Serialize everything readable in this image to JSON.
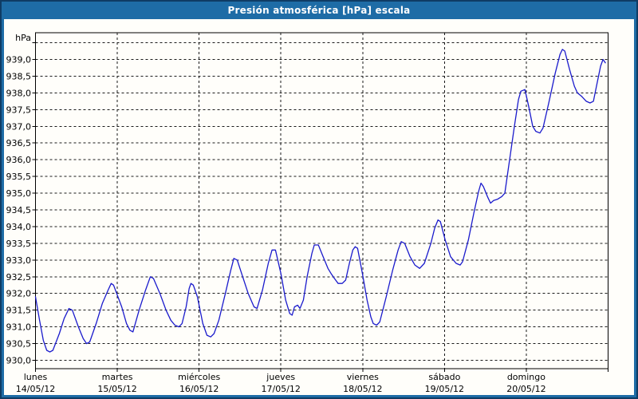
{
  "window": {
    "title": "Presión atmosférica [hPa] escala"
  },
  "colors": {
    "titlebar_background": "#1e6ca6",
    "frame_border": "#0f3c64",
    "title_text": "#ffffff",
    "chart_background": "#fffefa",
    "plot_border": "#000000",
    "gridline": "#1a1a1a",
    "axis_text": "#000000",
    "series_line": "#1a1acc"
  },
  "chart_data": {
    "type": "line",
    "title": "Presión atmosférica [hPa] escala",
    "grid": "dashed",
    "legend": "none",
    "y_axis": {
      "unit_label": "hPa",
      "min": 929.75,
      "max": 939.8,
      "gridline_values": [
        930.0,
        930.5,
        931.0,
        931.5,
        932.0,
        932.5,
        933.0,
        933.5,
        934.0,
        934.5,
        935.0,
        935.5,
        936.0,
        936.5,
        937.0,
        937.5,
        938.0,
        938.5,
        939.0,
        939.5
      ],
      "tick_labels": [
        "930,0",
        "930,5",
        "931,0",
        "931,5",
        "932,0",
        "932,5",
        "933,0",
        "933,5",
        "934,0",
        "934,5",
        "935,0",
        "935,5",
        "936,0",
        "936,5",
        "937,0",
        "937,5",
        "938,0",
        "938,5",
        "939,0"
      ]
    },
    "x_axis": {
      "total_hours": 168,
      "hours_per_day": 24,
      "days": [
        {
          "name": "lunes",
          "date": "14/05/12"
        },
        {
          "name": "martes",
          "date": "15/05/12"
        },
        {
          "name": "miércoles",
          "date": "16/05/12"
        },
        {
          "name": "jueves",
          "date": "17/05/12"
        },
        {
          "name": "viernes",
          "date": "18/05/12"
        },
        {
          "name": "sábado",
          "date": "19/05/12"
        },
        {
          "name": "domingo",
          "date": "20/05/12"
        }
      ]
    },
    "series": [
      {
        "name": "Presión atmosférica",
        "unit": "hPa",
        "points": [
          [
            0,
            931.9
          ],
          [
            1.2,
            931.2
          ],
          [
            2.3,
            930.6
          ],
          [
            3.3,
            930.3
          ],
          [
            4.2,
            930.25
          ],
          [
            5.1,
            930.3
          ],
          [
            7.0,
            930.8
          ],
          [
            8.4,
            931.25
          ],
          [
            9.8,
            931.55
          ],
          [
            10.8,
            931.5
          ],
          [
            12.6,
            931.0
          ],
          [
            14.0,
            930.65
          ],
          [
            15.0,
            930.5
          ],
          [
            15.9,
            930.55
          ],
          [
            17.8,
            931.1
          ],
          [
            19.6,
            931.7
          ],
          [
            21.3,
            932.1
          ],
          [
            22.2,
            932.3
          ],
          [
            22.9,
            932.25
          ],
          [
            25.3,
            931.6
          ],
          [
            26.7,
            931.1
          ],
          [
            27.7,
            930.9
          ],
          [
            28.6,
            930.85
          ],
          [
            30.4,
            931.5
          ],
          [
            32.3,
            932.1
          ],
          [
            33.7,
            932.5
          ],
          [
            34.6,
            932.45
          ],
          [
            36.5,
            932.0
          ],
          [
            38.3,
            931.5
          ],
          [
            39.7,
            931.2
          ],
          [
            40.9,
            931.05
          ],
          [
            42.1,
            931.0
          ],
          [
            43.0,
            931.1
          ],
          [
            44.2,
            931.6
          ],
          [
            45.1,
            932.15
          ],
          [
            45.6,
            932.3
          ],
          [
            46.3,
            932.25
          ],
          [
            47.5,
            931.9
          ],
          [
            49.1,
            931.1
          ],
          [
            50.3,
            930.75
          ],
          [
            51.4,
            930.7
          ],
          [
            52.4,
            930.8
          ],
          [
            53.8,
            931.2
          ],
          [
            55.7,
            932.0
          ],
          [
            57.3,
            932.7
          ],
          [
            58.2,
            933.05
          ],
          [
            59.2,
            933.0
          ],
          [
            60.8,
            932.5
          ],
          [
            62.4,
            932.0
          ],
          [
            64.1,
            931.6
          ],
          [
            65.0,
            931.55
          ],
          [
            66.6,
            932.1
          ],
          [
            68.3,
            932.9
          ],
          [
            69.4,
            933.3
          ],
          [
            70.4,
            933.3
          ],
          [
            72.0,
            932.6
          ],
          [
            73.4,
            931.8
          ],
          [
            74.6,
            931.4
          ],
          [
            75.3,
            931.35
          ],
          [
            76.0,
            931.6
          ],
          [
            76.9,
            931.65
          ],
          [
            77.6,
            931.55
          ],
          [
            78.6,
            931.8
          ],
          [
            79.7,
            932.5
          ],
          [
            81.1,
            933.2
          ],
          [
            81.8,
            933.45
          ],
          [
            83.0,
            933.45
          ],
          [
            84.4,
            933.1
          ],
          [
            85.8,
            932.75
          ],
          [
            86.7,
            932.6
          ],
          [
            87.7,
            932.45
          ],
          [
            88.8,
            932.3
          ],
          [
            90.0,
            932.3
          ],
          [
            91.0,
            932.4
          ],
          [
            92.1,
            932.9
          ],
          [
            93.1,
            933.3
          ],
          [
            93.8,
            933.4
          ],
          [
            94.5,
            933.35
          ],
          [
            95.9,
            932.6
          ],
          [
            97.3,
            931.8
          ],
          [
            98.4,
            931.3
          ],
          [
            99.1,
            931.1
          ],
          [
            100.1,
            931.05
          ],
          [
            101.0,
            931.15
          ],
          [
            102.9,
            931.9
          ],
          [
            104.8,
            932.7
          ],
          [
            106.4,
            933.3
          ],
          [
            107.3,
            933.55
          ],
          [
            108.3,
            933.5
          ],
          [
            109.9,
            933.1
          ],
          [
            111.3,
            932.85
          ],
          [
            112.7,
            932.75
          ],
          [
            114.1,
            932.9
          ],
          [
            116.0,
            933.5
          ],
          [
            117.1,
            933.95
          ],
          [
            118.1,
            934.2
          ],
          [
            118.8,
            934.15
          ],
          [
            120.2,
            933.6
          ],
          [
            121.8,
            933.1
          ],
          [
            123.4,
            932.9
          ],
          [
            124.6,
            932.85
          ],
          [
            125.3,
            932.95
          ],
          [
            127.0,
            933.6
          ],
          [
            128.6,
            934.4
          ],
          [
            130.0,
            935.05
          ],
          [
            130.7,
            935.3
          ],
          [
            131.4,
            935.2
          ],
          [
            132.6,
            934.9
          ],
          [
            133.5,
            934.7
          ],
          [
            134.4,
            934.78
          ],
          [
            135.6,
            934.82
          ],
          [
            136.8,
            934.9
          ],
          [
            137.7,
            935.0
          ],
          [
            139.1,
            936.0
          ],
          [
            140.5,
            937.0
          ],
          [
            141.7,
            937.8
          ],
          [
            142.4,
            938.05
          ],
          [
            143.6,
            938.1
          ],
          [
            144.7,
            937.6
          ],
          [
            145.9,
            937.0
          ],
          [
            146.8,
            936.85
          ],
          [
            148.0,
            936.8
          ],
          [
            148.9,
            936.95
          ],
          [
            150.6,
            937.7
          ],
          [
            152.5,
            938.6
          ],
          [
            153.9,
            939.15
          ],
          [
            154.6,
            939.3
          ],
          [
            155.3,
            939.25
          ],
          [
            156.7,
            938.7
          ],
          [
            158.1,
            938.2
          ],
          [
            159.0,
            938.0
          ],
          [
            160.2,
            937.9
          ],
          [
            161.6,
            937.75
          ],
          [
            162.7,
            937.7
          ],
          [
            163.7,
            937.75
          ],
          [
            164.8,
            938.3
          ],
          [
            165.8,
            938.8
          ],
          [
            166.5,
            939.0
          ],
          [
            167.2,
            938.9
          ]
        ]
      }
    ]
  }
}
